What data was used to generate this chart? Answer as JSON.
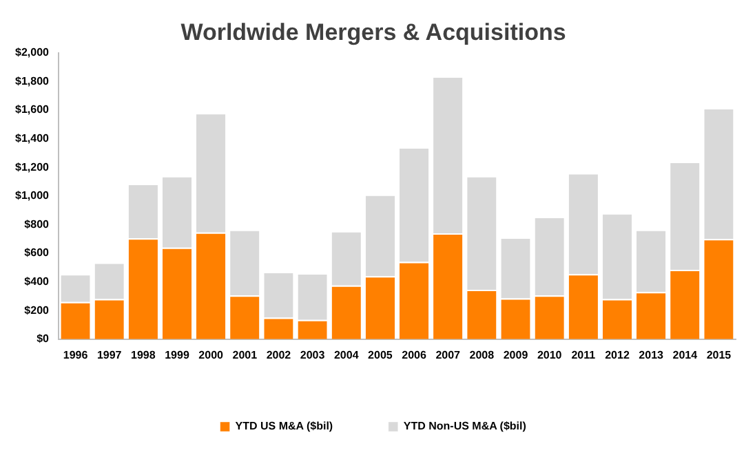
{
  "chart_data": {
    "type": "bar",
    "title": "Worldwide Mergers & Acquisitions",
    "stacked": true,
    "legend": "bottom",
    "grid": false,
    "categories": [
      "1996",
      "1997",
      "1998",
      "1999",
      "2000",
      "2001",
      "2002",
      "2003",
      "2004",
      "2005",
      "2006",
      "2007",
      "2008",
      "2009",
      "2010",
      "2011",
      "2012",
      "2013",
      "2014",
      "2015"
    ],
    "series": [
      {
        "name": "YTD US M&A ($bil)",
        "color": "#ff8000",
        "values": [
          260,
          280,
          705,
          640,
          745,
          305,
          150,
          135,
          375,
          440,
          540,
          740,
          345,
          285,
          305,
          455,
          280,
          330,
          485,
          700
        ]
      },
      {
        "name": "YTD Non-US M&A ($bil)",
        "color": "#d9d9d9",
        "values": [
          195,
          255,
          380,
          500,
          835,
          460,
          320,
          325,
          380,
          570,
          800,
          1095,
          795,
          425,
          550,
          705,
          600,
          435,
          755,
          915
        ]
      }
    ],
    "ylim": [
      0,
      2000
    ],
    "yticks": [
      {
        "value": 0,
        "label": "$0"
      },
      {
        "value": 200,
        "label": "$200"
      },
      {
        "value": 400,
        "label": "$400"
      },
      {
        "value": 600,
        "label": "$600"
      },
      {
        "value": 800,
        "label": "$800"
      },
      {
        "value": 1000,
        "label": "$1,000"
      },
      {
        "value": 1200,
        "label": "$1,200"
      },
      {
        "value": 1400,
        "label": "$1,400"
      },
      {
        "value": 1600,
        "label": "$1,600"
      },
      {
        "value": 1800,
        "label": "$1,800"
      },
      {
        "value": 2000,
        "label": "$2,000"
      }
    ]
  }
}
